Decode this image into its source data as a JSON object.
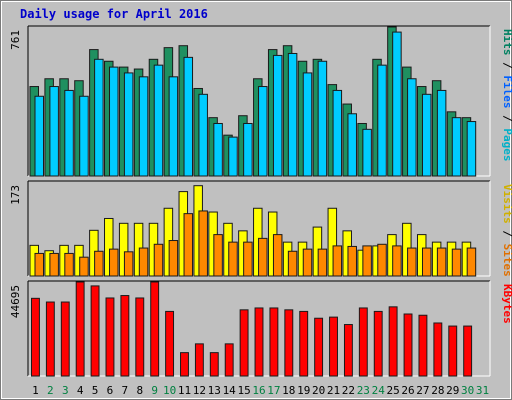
{
  "chart_data": {
    "type": "bar",
    "title": "Daily usage for April 2016",
    "categories": [
      "1",
      "2",
      "3",
      "4",
      "5",
      "6",
      "7",
      "8",
      "9",
      "10",
      "11",
      "12",
      "13",
      "14",
      "15",
      "16",
      "17",
      "18",
      "19",
      "20",
      "21",
      "22",
      "23",
      "24",
      "25",
      "26",
      "27",
      "28",
      "29",
      "30",
      "31"
    ],
    "weekend_days": [
      "2",
      "3",
      "9",
      "10",
      "16",
      "17",
      "23",
      "24",
      "30",
      "31"
    ],
    "panels": [
      {
        "id": "pages-files-hits",
        "ymax_label": "761",
        "ylim": [
          0,
          761
        ],
        "legend": [
          "Pages",
          "Files",
          "Hits"
        ],
        "legend_colors": [
          "#00b0c8",
          "#0060ff",
          "#008060"
        ],
        "series": [
          {
            "name": "Hits",
            "color": "#1f9060",
            "values": [
              460,
              500,
              500,
              490,
              650,
              590,
              560,
              550,
              600,
              660,
              670,
              450,
              300,
              210,
              310,
              500,
              650,
              670,
              590,
              600,
              470,
              370,
              270,
              600,
              770,
              560,
              460,
              490,
              330,
              300,
              0
            ]
          },
          {
            "name": "Files",
            "color": "#00ccff",
            "values": [
              410,
              460,
              440,
              410,
              600,
              560,
              530,
              510,
              570,
              510,
              610,
              420,
              270,
              200,
              270,
              460,
              620,
              630,
              530,
              590,
              440,
              320,
              240,
              570,
              740,
              500,
              420,
              440,
              300,
              280,
              0
            ]
          }
        ]
      },
      {
        "id": "sites-visits",
        "ymax_label": "173",
        "ylim": [
          0,
          173
        ],
        "legend": [
          "Sites",
          "Visits"
        ],
        "legend_colors": [
          "#e07000",
          "#d0b000"
        ],
        "series": [
          {
            "name": "Visits",
            "color": "#ffff00",
            "values": [
              57,
              47,
              57,
              57,
              85,
              107,
              98,
              98,
              98,
              126,
              157,
              168,
              119,
              98,
              84,
              126,
              119,
              63,
              63,
              91,
              126,
              84,
              48,
              56,
              77,
              98,
              77,
              63,
              63,
              63,
              0
            ]
          },
          {
            "name": "Sites",
            "color": "#ff8800",
            "values": [
              42,
              42,
              42,
              35,
              46,
              50,
              45,
              52,
              59,
              66,
              116,
              121,
              77,
              63,
              63,
              70,
              77,
              46,
              50,
              50,
              56,
              55,
              56,
              59,
              56,
              52,
              52,
              52,
              50,
              52,
              0
            ]
          }
        ]
      },
      {
        "id": "kbytes",
        "ymax_label": "44695",
        "ylim": [
          0,
          44695
        ],
        "legend": [
          "KBytes"
        ],
        "legend_colors": [
          "#ff0000"
        ],
        "series": [
          {
            "name": "KBytes",
            "color": "#ff0000",
            "values": [
              37330,
              35550,
              35550,
              45600,
              43300,
              37500,
              38670,
              37500,
              45600,
              31040,
              11230,
              15450,
              11230,
              15450,
              31800,
              32700,
              32700,
              31800,
              31040,
              27760,
              28300,
              24730,
              32700,
              31040,
              33240,
              29800,
              29200,
              25480,
              24000,
              24000,
              0
            ]
          }
        ]
      }
    ]
  }
}
